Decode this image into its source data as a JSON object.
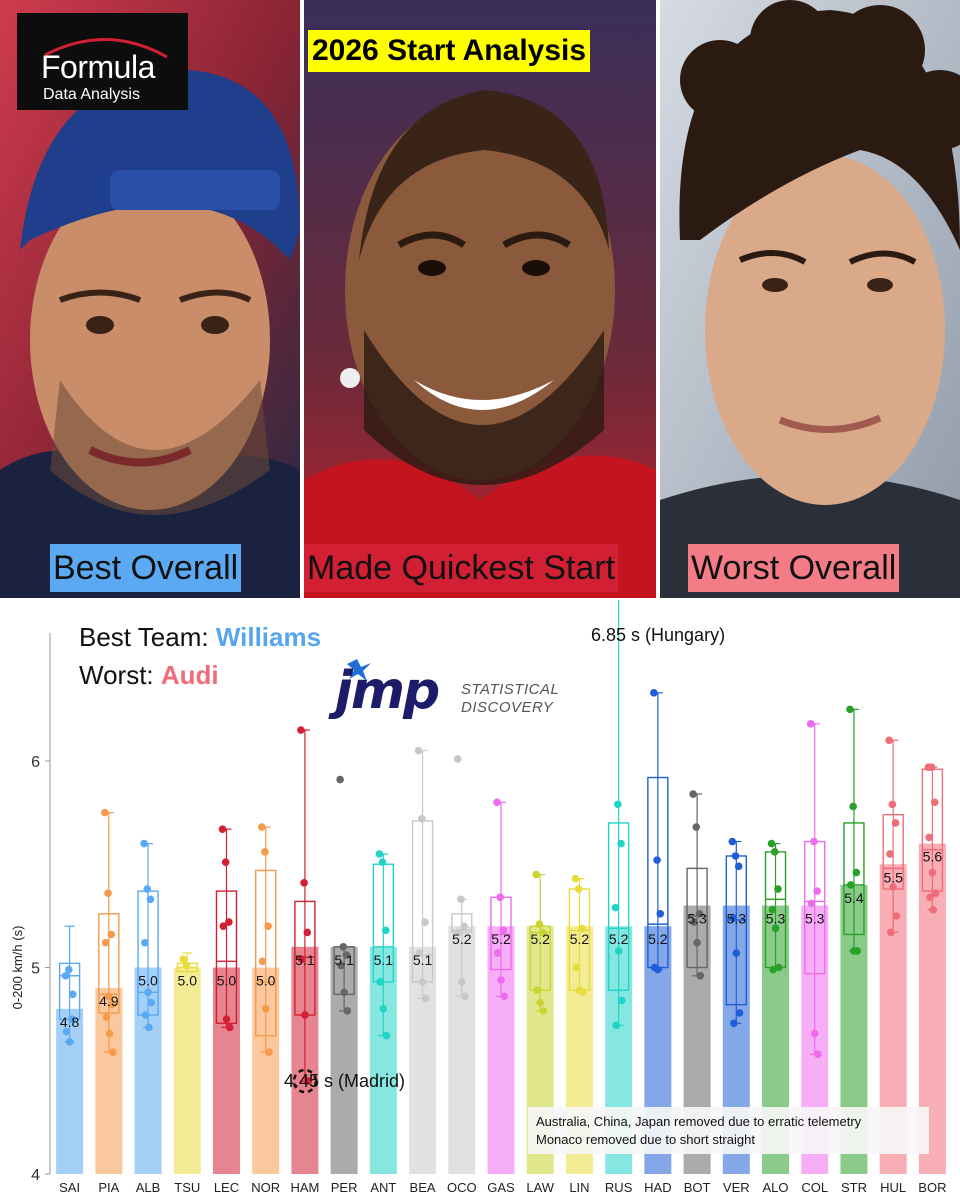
{
  "header": {
    "logo_line1": "Formula",
    "logo_line2": "Data Analysis",
    "title": "2026 Start Analysis"
  },
  "panels": [
    {
      "caption": "Best Overall",
      "color": "#5aa9f2"
    },
    {
      "caption": "Made Quickest Start",
      "color": "#d21f33"
    },
    {
      "caption": "Worst Overall",
      "color": "#f47c86"
    }
  ],
  "summary": {
    "best_prefix": "Best Team: ",
    "best_value": "Williams",
    "worst_prefix": "Worst: ",
    "worst_value": "Audi"
  },
  "sponsor": {
    "wordmark": "jmp",
    "tagline_line1": "STATISTICAL",
    "tagline_line2": "DISCOVERY"
  },
  "annotations": {
    "max": "6.85 s (Hungary)",
    "min": "4.45 s (Madrid)"
  },
  "notes": [
    "Australia, China, Japan removed due to erratic telemetry",
    "Monaco removed due to short straight"
  ],
  "chart_data": {
    "type": "bar",
    "ylabel": "0-200 km/h (s)",
    "xlabel": "",
    "ylim": [
      4,
      6.5
    ],
    "yticks": [
      4,
      5,
      6
    ],
    "grid": false,
    "legend": "none",
    "categories": [
      "SAI",
      "PIA",
      "ALB",
      "TSU",
      "LEC",
      "NOR",
      "HAM",
      "PER",
      "ANT",
      "BEA",
      "OCO",
      "GAS",
      "LAW",
      "LIN",
      "RUS",
      "HAD",
      "BOT",
      "VER",
      "ALO",
      "COL",
      "STR",
      "HUL",
      "BOR"
    ],
    "values": [
      4.8,
      4.9,
      5.0,
      5.0,
      5.0,
      5.0,
      5.1,
      5.1,
      5.1,
      5.1,
      5.2,
      5.2,
      5.2,
      5.2,
      5.2,
      5.2,
      5.3,
      5.3,
      5.3,
      5.3,
      5.4,
      5.5,
      5.6
    ],
    "bar_labels": [
      "4.8",
      "4.9",
      "5.0",
      "5.0",
      "5.0",
      "5.0",
      "5.1",
      "5.1",
      "5.1",
      "5.1",
      "5.2",
      "5.2",
      "5.2",
      "5.2",
      "5.2",
      "5.2",
      "5.3",
      "5.3",
      "5.3",
      "5.3",
      "5.4",
      "5.5",
      "5.6"
    ],
    "colors": [
      "#5aa9f2",
      "#f59a4a",
      "#5aa9f2",
      "#e8dc3c",
      "#d21f33",
      "#f59a4a",
      "#d21f33",
      "#666666",
      "#22d3c8",
      "#c8c8c8",
      "#c8c8c8",
      "#ee6bee",
      "#c9d430",
      "#e8dc3c",
      "#22d3c8",
      "#1f5fd6",
      "#666666",
      "#1f5fd6",
      "#2aa02a",
      "#ee6bee",
      "#2aa02a",
      "#f06c78",
      "#f06c78"
    ],
    "box_q1": [
      4.75,
      4.78,
      4.77,
      4.98,
      4.73,
      4.67,
      4.77,
      4.87,
      4.93,
      4.93,
      5.17,
      4.99,
      4.89,
      4.89,
      4.89,
      5.0,
      5.0,
      4.82,
      5.0,
      4.97,
      5.16,
      5.38,
      5.37
    ],
    "box_median": [
      4.96,
      4.87,
      4.88,
      5.0,
      5.03,
      4.93,
      5.05,
      5.1,
      5.1,
      5.06,
      5.18,
      5.16,
      5.17,
      5.18,
      5.19,
      5.21,
      5.25,
      5.23,
      5.33,
      5.32,
      5.4,
      5.48,
      5.57
    ],
    "box_q3": [
      5.02,
      5.26,
      5.37,
      5.02,
      5.37,
      5.47,
      5.32,
      5.1,
      5.5,
      5.71,
      5.26,
      5.34,
      5.2,
      5.38,
      5.7,
      5.92,
      5.48,
      5.54,
      5.56,
      5.61,
      5.7,
      5.74,
      5.96
    ],
    "whisker_low": [
      4.64,
      4.59,
      4.71,
      4.98,
      4.71,
      4.59,
      4.45,
      4.79,
      4.67,
      4.85,
      4.86,
      4.86,
      4.79,
      4.88,
      4.72,
      4.99,
      4.96,
      4.73,
      4.99,
      4.58,
      5.08,
      5.17,
      5.28
    ],
    "whisker_high": [
      5.2,
      5.75,
      5.6,
      5.07,
      5.67,
      5.68,
      6.15,
      5.1,
      5.55,
      6.05,
      5.33,
      5.8,
      5.45,
      5.43,
      6.85,
      6.33,
      5.84,
      5.61,
      5.6,
      6.18,
      6.25,
      6.1,
      5.97
    ],
    "outliers": [
      [],
      [],
      [],
      [],
      [],
      [],
      [],
      [
        5.91
      ],
      [],
      [],
      [
        6.01
      ],
      [],
      [],
      [],
      [],
      [],
      [],
      [],
      [],
      [],
      [],
      [],
      []
    ],
    "points": [
      [
        4.96,
        4.99,
        4.75,
        4.69,
        4.64,
        4.87
      ],
      [
        5.75,
        5.36,
        5.16,
        5.12,
        4.86,
        4.82,
        4.76,
        4.68,
        4.59
      ],
      [
        5.6,
        5.38,
        5.33,
        5.12,
        4.88,
        4.83,
        4.77,
        4.71
      ],
      [
        5.04,
        5.01
      ],
      [
        5.67,
        5.51,
        5.22,
        5.2,
        4.75,
        4.71
      ],
      [
        5.68,
        5.56,
        5.2,
        5.03,
        4.8,
        4.59
      ],
      [
        6.15,
        5.41,
        5.17,
        5.04,
        4.77,
        4.45
      ],
      [
        5.91,
        5.1,
        5.06,
        5.01,
        4.88,
        4.79
      ],
      [
        5.55,
        5.51,
        5.18,
        4.93,
        4.8,
        4.67
      ],
      [
        6.05,
        5.72,
        5.22,
        5.07,
        4.93,
        4.85
      ],
      [
        6.01,
        5.33,
        5.2,
        5.17,
        4.93,
        4.86
      ],
      [
        5.8,
        5.34,
        5.18,
        5.07,
        4.94,
        4.86
      ],
      [
        5.45,
        5.21,
        5.17,
        4.89,
        4.83,
        4.79
      ],
      [
        5.43,
        5.38,
        5.19,
        5.0,
        4.89,
        4.88
      ],
      [
        6.85,
        5.79,
        5.6,
        5.29,
        5.08,
        4.84,
        4.72
      ],
      [
        6.33,
        5.52,
        5.26,
        5.0,
        4.99
      ],
      [
        5.84,
        5.68,
        5.26,
        5.22,
        5.12,
        4.96
      ],
      [
        5.61,
        5.54,
        5.49,
        5.24,
        5.07,
        4.78,
        4.73
      ],
      [
        5.6,
        5.56,
        5.38,
        5.28,
        5.19,
        5.0,
        4.99
      ],
      [
        6.18,
        5.61,
        5.37,
        5.31,
        4.68,
        4.58
      ],
      [
        6.25,
        5.78,
        5.46,
        5.4,
        5.08,
        5.08
      ],
      [
        6.1,
        5.79,
        5.7,
        5.55,
        5.39,
        5.25,
        5.17
      ],
      [
        5.97,
        5.97,
        5.8,
        5.63,
        5.46,
        5.36,
        5.34,
        5.28
      ]
    ]
  }
}
